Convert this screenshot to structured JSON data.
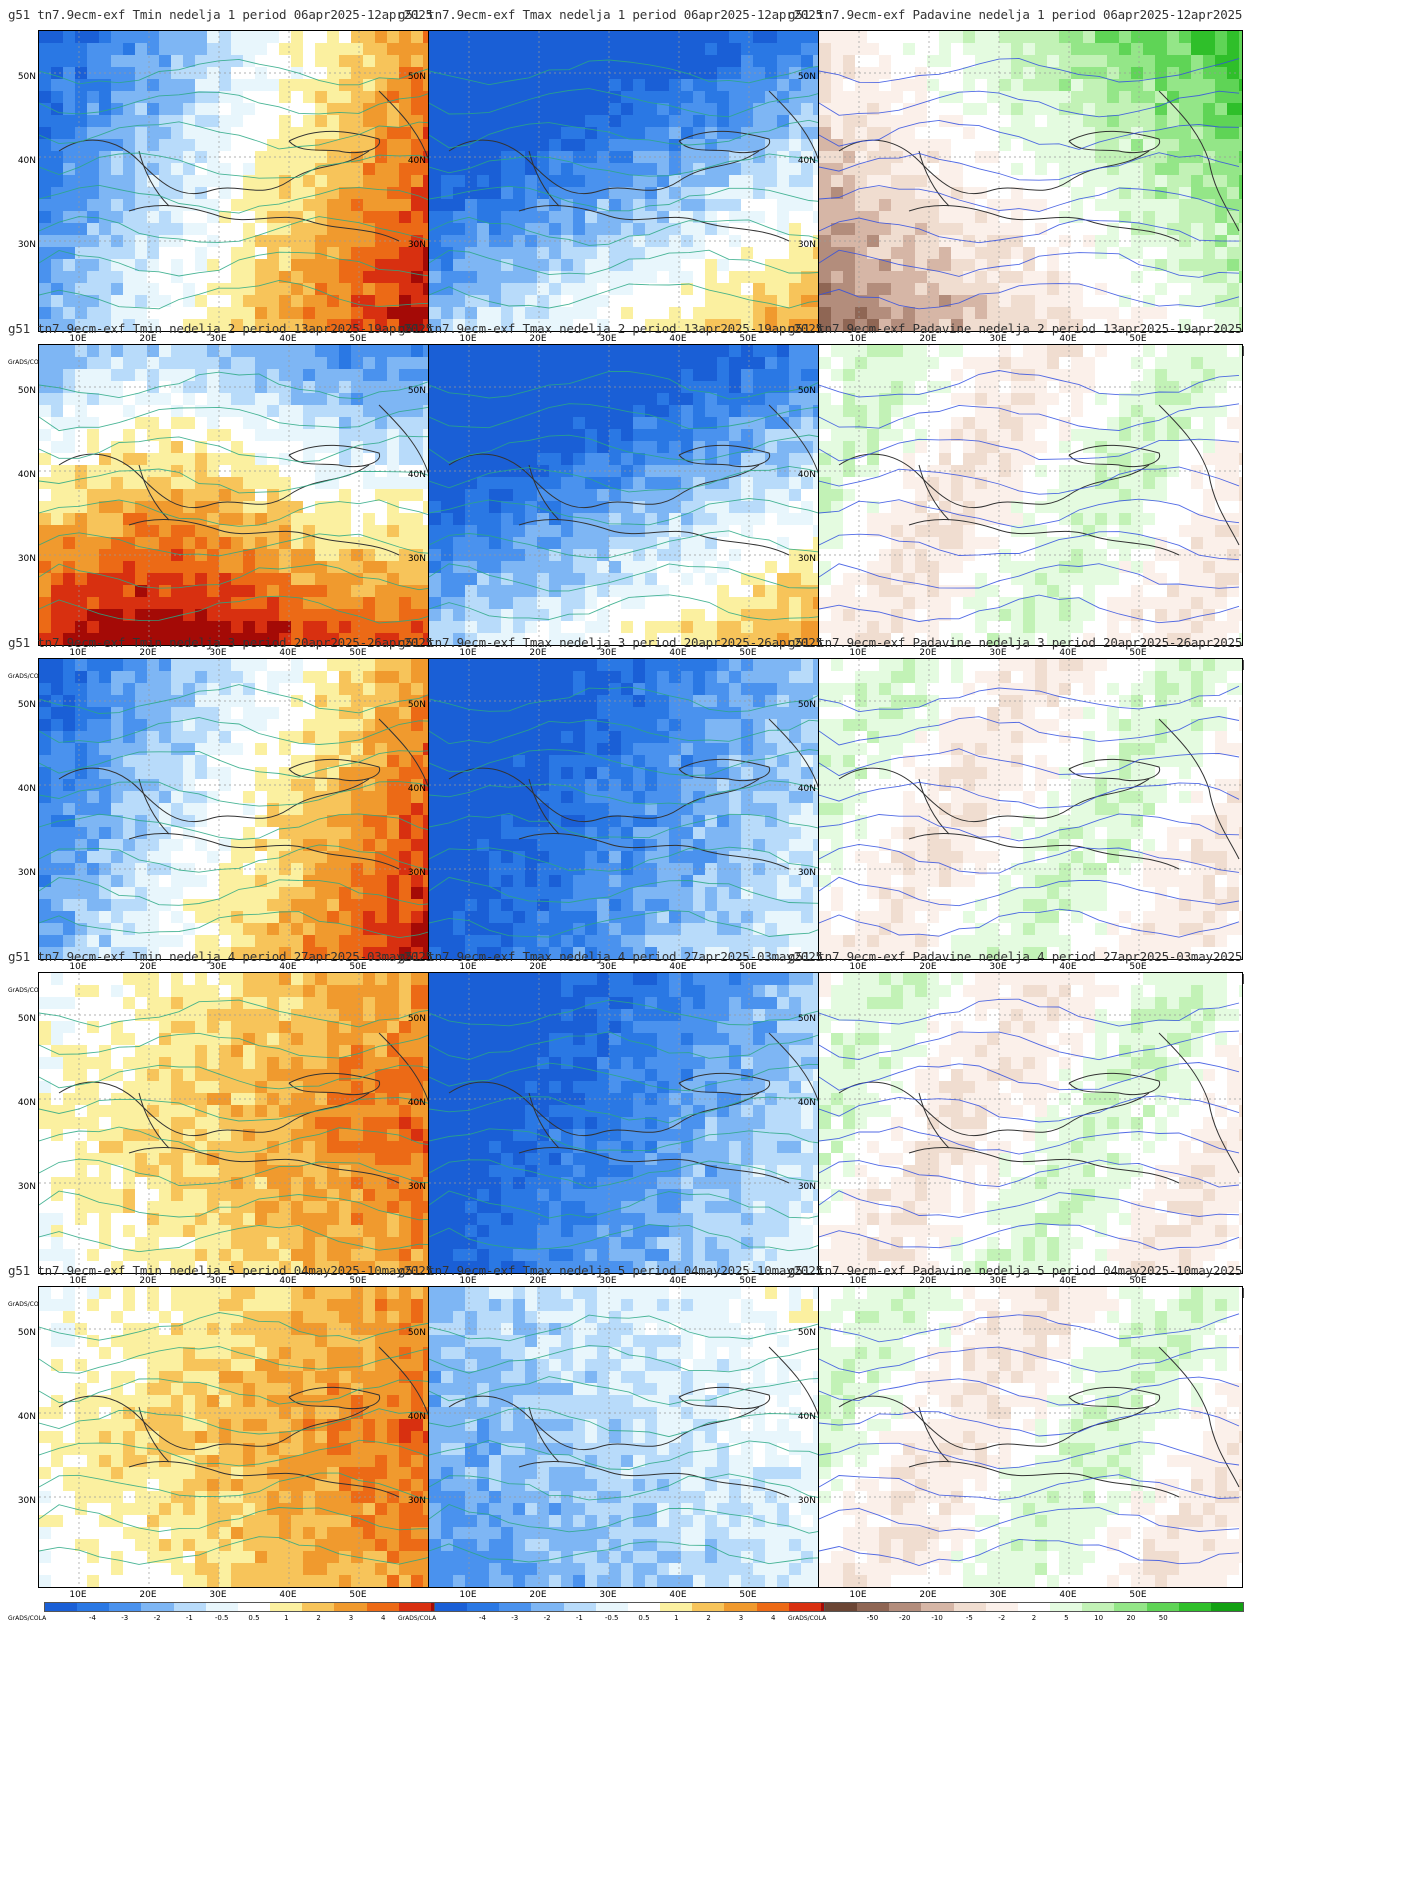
{
  "legend_source": "GrADS/COLA",
  "lat_ticks": [
    "50N",
    "40N",
    "30N"
  ],
  "lon_ticks": [
    "10E",
    "20E",
    "30E",
    "40E",
    "50E"
  ],
  "temp_scale": {
    "labels": [
      "-4",
      "-3",
      "-2",
      "-1",
      "-0.5",
      "0.5",
      "1",
      "2",
      "3",
      "4"
    ],
    "colors": [
      "#1a5fd6",
      "#2a78e4",
      "#4a92ee",
      "#7eb6f4",
      "#b8dbfa",
      "#e8f6fc",
      "#ffffff",
      "#fbf0a0",
      "#f7c45a",
      "#f09a2e",
      "#ec6a16",
      "#d83010",
      "#a40a06"
    ]
  },
  "precip_scale": {
    "labels": [
      "-50",
      "-20",
      "-10",
      "-5",
      "-2",
      "2",
      "5",
      "10",
      "20",
      "50"
    ],
    "colors": [
      "#6b4534",
      "#8f6654",
      "#b38d7c",
      "#d6b6a6",
      "#f0ddd0",
      "#fbf0ea",
      "#ffffff",
      "#e4fbe0",
      "#c2f2b6",
      "#94e688",
      "#5fd456",
      "#2fbf2a",
      "#12a012"
    ]
  },
  "panels": [
    {
      "title": "g51  tn7.9ecm-exf Tmin nedelja 1 period 06apr2025-12apr2025",
      "kind": "temp",
      "anomaly": "warm-east"
    },
    {
      "title": "g51  tn7.9ecm-exf Tmax nedelja 1 period 06apr2025-12apr2025",
      "kind": "temp",
      "anomaly": "cold-north"
    },
    {
      "title": "g51  tn7.9ecm-exf Padavine nedelja 1 period 06apr2025-12apr2025",
      "kind": "precip",
      "anomaly": "wet-north"
    },
    {
      "title": "g51  tn7.9ecm-exf Tmin nedelja 2 period 13apr2025-19apr2025",
      "kind": "temp",
      "anomaly": "warm-south"
    },
    {
      "title": "g51  tn7.9ecm-exf Tmax nedelja 2 period 13apr2025-19apr2025",
      "kind": "temp",
      "anomaly": "cold-north"
    },
    {
      "title": "g51  tn7.9ecm-exf Padavine nedelja 2 period 13apr2025-19apr2025",
      "kind": "precip",
      "anomaly": "mixed"
    },
    {
      "title": "g51  tn7.9ecm-exf Tmin nedelja 3 period 20apr2025-26apr2025",
      "kind": "temp",
      "anomaly": "warm-east"
    },
    {
      "title": "g51  tn7.9ecm-exf Tmax nedelja 3 period 20apr2025-26apr2025",
      "kind": "temp",
      "anomaly": "cold-all"
    },
    {
      "title": "g51  tn7.9ecm-exf Padavine nedelja 3 period 20apr2025-26apr2025",
      "kind": "precip",
      "anomaly": "mixed"
    },
    {
      "title": "g51  tn7.9ecm-exf Tmin nedelja 4 period 27apr2025-03may2025",
      "kind": "temp",
      "anomaly": "warm-all"
    },
    {
      "title": "g51  tn7.9ecm-exf Tmax nedelja 4 period 27apr2025-03may2025",
      "kind": "temp",
      "anomaly": "cold-all"
    },
    {
      "title": "g51  tn7.9ecm-exf Padavine nedelja 4 period 27apr2025-03may2025",
      "kind": "precip",
      "anomaly": "mixed"
    },
    {
      "title": "g51  tn7.9ecm-exf Tmin nedelja 5 period 04may2025-10may2025",
      "kind": "temp",
      "anomaly": "warm-all"
    },
    {
      "title": "g51  tn7.9ecm-exf Tmax nedelja 5 period 04may2025-10may2025",
      "kind": "temp",
      "anomaly": "neutral"
    },
    {
      "title": "g51  tn7.9ecm-exf Padavine nedelja 5 period 04may2025-10may2025",
      "kind": "precip",
      "anomaly": "mixed"
    }
  ]
}
